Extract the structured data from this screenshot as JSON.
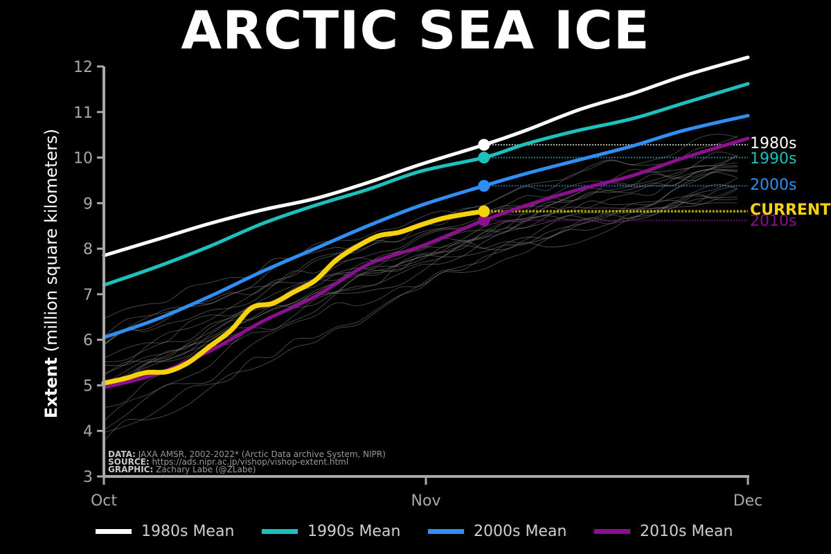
{
  "title": "ARCTIC SEA ICE",
  "y_axis": {
    "label_bold": "Extent",
    "label_rest": " (million square kilometers)"
  },
  "source": {
    "data_label": "DATA:",
    "data_text": " JAXA AMSR, 2002-2022* (Arctic Data archive System, NIPR)",
    "source_label": "SOURCE:",
    "source_text": " https://ads.nipr.ac.jp/vishop/vishop-extent.html",
    "graphic_label": "GRAPHIC:",
    "graphic_text": " Zachary Labe (@ZLabe)"
  },
  "legend": [
    {
      "label": "1980s Mean",
      "color": "#ffffff"
    },
    {
      "label": "1990s Mean",
      "color": "#1ec0bf"
    },
    {
      "label": "2000s Mean",
      "color": "#2f8ff5"
    },
    {
      "label": "2010s Mean",
      "color": "#8b0f8e"
    }
  ],
  "chart_data": {
    "type": "line",
    "xlabel": "",
    "ylabel": "Extent (million square kilometers)",
    "ylim": [
      3,
      12
    ],
    "xlim": [
      0,
      61
    ],
    "yticks": [
      3,
      4,
      5,
      6,
      7,
      8,
      9,
      10,
      11,
      12
    ],
    "xticks": [
      {
        "day": 0,
        "label": "Oct"
      },
      {
        "day": 30.5,
        "label": "Nov"
      },
      {
        "day": 61,
        "label": "Dec"
      }
    ],
    "grid": false,
    "current_day": 36,
    "series": [
      {
        "name": "1980s Mean",
        "color": "#ffffff",
        "width": 5,
        "x": [
          0,
          5,
          10,
          15,
          20,
          25,
          30,
          36,
          40,
          45,
          50,
          55,
          61
        ],
        "y": [
          7.85,
          8.2,
          8.55,
          8.85,
          9.1,
          9.45,
          9.85,
          10.28,
          10.6,
          11.05,
          11.4,
          11.8,
          12.2
        ],
        "endlabel": "1980s",
        "endvalue": 10.28
      },
      {
        "name": "1990s Mean",
        "color": "#1ec0bf",
        "width": 5,
        "x": [
          0,
          5,
          10,
          15,
          20,
          25,
          30,
          36,
          40,
          45,
          50,
          55,
          61
        ],
        "y": [
          7.2,
          7.6,
          8.05,
          8.55,
          8.95,
          9.3,
          9.7,
          10.0,
          10.3,
          10.6,
          10.85,
          11.2,
          11.62
        ],
        "endlabel": "1990s",
        "endvalue": 10.0
      },
      {
        "name": "2000s Mean",
        "color": "#2f8ff5",
        "width": 5,
        "x": [
          0,
          5,
          10,
          15,
          20,
          25,
          30,
          36,
          40,
          45,
          50,
          55,
          61
        ],
        "y": [
          6.05,
          6.45,
          6.95,
          7.5,
          8.0,
          8.5,
          8.95,
          9.38,
          9.65,
          9.95,
          10.25,
          10.6,
          10.92
        ],
        "endlabel": "2000s",
        "endvalue": 9.38
      },
      {
        "name": "2010s Mean",
        "color": "#8b0f8e",
        "width": 5,
        "x": [
          0,
          5,
          10,
          15,
          20,
          25,
          30,
          36,
          40,
          45,
          50,
          55,
          61
        ],
        "y": [
          4.95,
          5.25,
          5.75,
          6.4,
          6.95,
          7.65,
          8.05,
          8.62,
          8.95,
          9.3,
          9.6,
          10.0,
          10.42
        ],
        "endlabel": "2010s",
        "endvalue": 8.62
      },
      {
        "name": "CURRENT",
        "color": "#f7d10b",
        "width": 7,
        "x": [
          0,
          2,
          4,
          6,
          8,
          10,
          12,
          14,
          16,
          18,
          20,
          22,
          24,
          26,
          28,
          30,
          32,
          34,
          36
        ],
        "y": [
          5.05,
          5.15,
          5.28,
          5.3,
          5.5,
          5.85,
          6.2,
          6.7,
          6.8,
          7.05,
          7.3,
          7.75,
          8.05,
          8.28,
          8.36,
          8.52,
          8.66,
          8.75,
          8.82
        ],
        "endlabel": "CURRENT",
        "endvalue": 8.82
      }
    ]
  }
}
